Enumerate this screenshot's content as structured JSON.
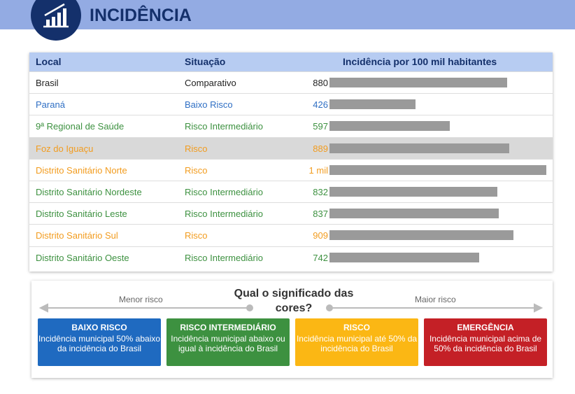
{
  "header": {
    "title": "INCIDÊNCIA"
  },
  "table": {
    "columns": [
      "Local",
      "Situação",
      "Incidência por 100 mil habitantes"
    ],
    "bar_color": "#9a9a9a",
    "rows": [
      {
        "local": "Brasil",
        "situacao": "Comparativo",
        "value": 880,
        "color": "#222222"
      },
      {
        "local": "Paraná",
        "situacao": "Baixo Risco",
        "value": 426,
        "color": "#2f6fc4"
      },
      {
        "local": "9ª Regional de Saúde",
        "situacao": "Risco Intermediário",
        "value": 597,
        "color": "#3d9140"
      },
      {
        "local": "Foz do Iguaçu",
        "situacao": "Risco",
        "value": 889,
        "color": "#f29c1f"
      },
      {
        "local": "Distrito Sanitário Norte",
        "situacao": "Risco",
        "value": 1073,
        "value_label": "1 mil",
        "color": "#f29c1f"
      },
      {
        "local": "Distrito Sanitário Nordeste",
        "situacao": "Risco Intermediário",
        "value": 832,
        "color": "#3d9140"
      },
      {
        "local": "Distrito Sanitário Leste",
        "situacao": "Risco Intermediário",
        "value": 837,
        "color": "#3d9140"
      },
      {
        "local": "Distrito Sanitário Sul",
        "situacao": "Risco",
        "value": 909,
        "color": "#f29c1f"
      },
      {
        "local": "Distrito Sanitário Oeste",
        "situacao": "Risco Intermediário",
        "value": 742,
        "color": "#3d9140"
      }
    ]
  },
  "legend": {
    "title": "Qual o significado das cores?",
    "low": "Menor risco",
    "high": "Maior risco",
    "boxes": [
      {
        "title": "BAIXO RISCO",
        "text": "Incidência municipal 50% abaixo da incidência do Brasil",
        "color": "#1f6ac0"
      },
      {
        "title": "RISCO INTERMEDIÁRIO",
        "text": "Incidência municipal abaixo ou igual à incidência do Brasil",
        "color": "#3d9140"
      },
      {
        "title": "RISCO",
        "text": "Incidência municipal até 50% da incidência do Brasil",
        "color": "#fbb714"
      },
      {
        "title": "EMERGÊNCIA",
        "text": "Incidência municipal acima de 50% da incidência do Brasil",
        "color": "#c42026"
      }
    ]
  }
}
